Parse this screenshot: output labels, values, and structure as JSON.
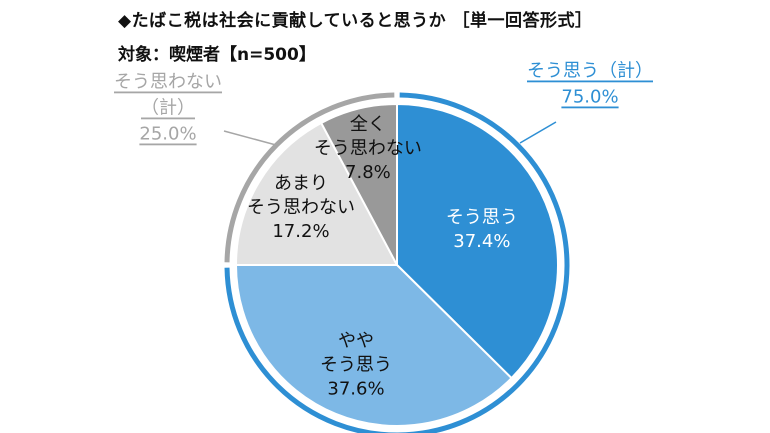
{
  "header": {
    "title": "◆たばこ税は社会に貢献していると思うか ［単一回答形式］",
    "subtitle": "対象：喫煙者【n=500】"
  },
  "chart_data": {
    "type": "pie",
    "slices": [
      {
        "lines": [
          "そう思う",
          "37.4%"
        ],
        "value": 37.4,
        "color": "#2E8FD4"
      },
      {
        "lines": [
          "やや",
          "そう思う",
          "37.6%"
        ],
        "value": 37.6,
        "color": "#7DB8E6"
      },
      {
        "lines": [
          "あまり",
          "そう思わない",
          "17.2%"
        ],
        "value": 17.2,
        "color": "#E2E2E2"
      },
      {
        "lines": [
          "全く",
          "そう思わない",
          "7.8%"
        ],
        "value": 7.8,
        "color": "#999999"
      }
    ],
    "groups": [
      {
        "lines": [
          "そう思う（計）",
          "75.0%"
        ],
        "value": 75.0,
        "color": "#2E8FD4"
      },
      {
        "lines": [
          "そう思わない",
          "（計）",
          "25.0%"
        ],
        "value": 25.0,
        "color": "#A6A6A6"
      }
    ]
  }
}
